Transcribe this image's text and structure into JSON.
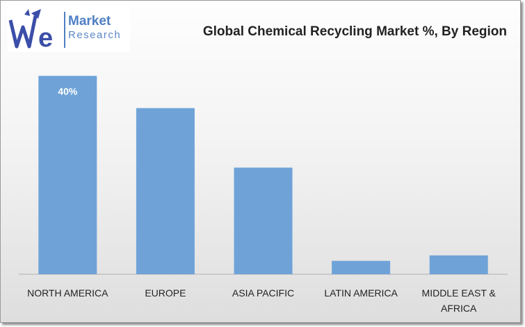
{
  "logo": {
    "mark": "We",
    "word1": "Market",
    "word2": "Research",
    "colors": {
      "primary": "#3b4ea8",
      "accent": "#4f7fc4"
    }
  },
  "chart_data": {
    "type": "bar",
    "title": "Global Chemical Recycling Market %, By Region",
    "categories": [
      "NORTH AMERICA",
      "EUROPE",
      "ASIA PACIFIC",
      "LATIN AMERICA",
      "MIDDLE EAST & AFRICA"
    ],
    "category_lines": [
      [
        "NORTH AMERICA"
      ],
      [
        "EUROPE"
      ],
      [
        "ASIA PACIFIC"
      ],
      [
        "LATIN AMERICA"
      ],
      [
        "MIDDLE EAST &",
        "AFRICA"
      ]
    ],
    "values": [
      40,
      33.5,
      21.5,
      2.7,
      3.8
    ],
    "data_labels": [
      "40%",
      "",
      "",
      "",
      ""
    ],
    "ylim": [
      0,
      42
    ],
    "xlabel": "",
    "ylabel": "",
    "grid": false,
    "legend": "none",
    "colors": {
      "bar": "#6fa3d8",
      "axis": "#b0b0b0"
    }
  }
}
